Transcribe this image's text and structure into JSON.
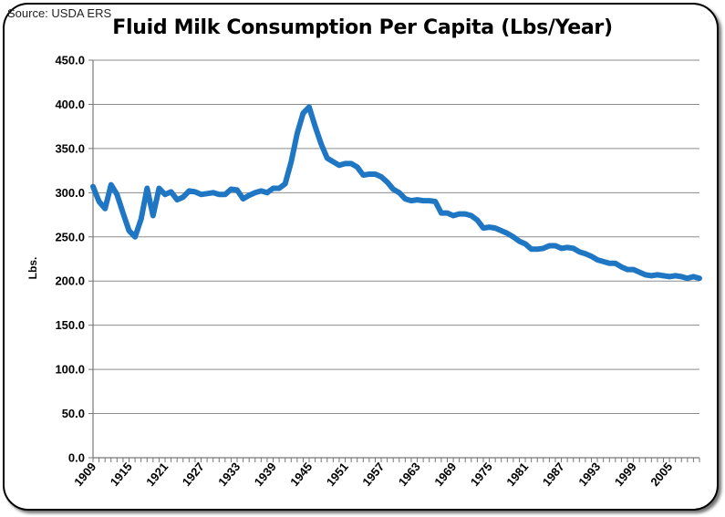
{
  "source": "Source:  USDA ERS",
  "chart_data": {
    "type": "line",
    "title": "Fluid Milk Consumption Per Capita (Lbs/Year)",
    "xlabel": "",
    "ylabel": "Lbs.",
    "ylim": [
      0,
      450
    ],
    "y_ticks": [
      "0.0",
      "50.0",
      "100.0",
      "150.0",
      "200.0",
      "250.0",
      "300.0",
      "350.0",
      "400.0",
      "450.0"
    ],
    "x_ticks": [
      "1909",
      "1915",
      "1921",
      "1927",
      "1933",
      "1939",
      "1945",
      "1951",
      "1957",
      "1963",
      "1969",
      "1975",
      "1981",
      "1987",
      "1993",
      "1999",
      "2005"
    ],
    "grid": "horizontal",
    "legend": "none",
    "line_color": "#1f77c4",
    "series": [
      {
        "x": [
          1909,
          1910,
          1911,
          1912,
          1913,
          1914,
          1915,
          1916,
          1917,
          1918,
          1919,
          1920,
          1921,
          1922,
          1923,
          1924,
          1925,
          1926,
          1927,
          1928,
          1929,
          1930,
          1931,
          1932,
          1933,
          1934,
          1935,
          1936,
          1937,
          1938,
          1939,
          1940,
          1941,
          1942,
          1943,
          1944,
          1945,
          1946,
          1947,
          1948,
          1949,
          1950,
          1951,
          1952,
          1953,
          1954,
          1955,
          1956,
          1957,
          1958,
          1959,
          1960,
          1961,
          1962,
          1963,
          1964,
          1965,
          1966,
          1967,
          1968,
          1969,
          1970,
          1971,
          1972,
          1973,
          1974,
          1975,
          1976,
          1977,
          1978,
          1979,
          1980,
          1981,
          1982,
          1983,
          1984,
          1985,
          1986,
          1987,
          1988,
          1989,
          1990,
          1991,
          1992,
          1993,
          1994,
          1995,
          1996,
          1997,
          1998,
          1999,
          2000,
          2001,
          2002,
          2003,
          2004,
          2005,
          2006,
          2007,
          2008,
          2009,
          2010
        ],
        "values": [
          307,
          290,
          282,
          309,
          298,
          277,
          257,
          250,
          270,
          305,
          274,
          305,
          298,
          301,
          292,
          295,
          302,
          301,
          298,
          299,
          300,
          298,
          298,
          304,
          303,
          293,
          297,
          300,
          302,
          300,
          305,
          305,
          310,
          335,
          367,
          390,
          397,
          375,
          355,
          339,
          335,
          331,
          333,
          333,
          329,
          320,
          321,
          321,
          318,
          312,
          304,
          300,
          293,
          291,
          292,
          291,
          291,
          290,
          277,
          277,
          274,
          276,
          276,
          274,
          269,
          260,
          261,
          260,
          257,
          254,
          250,
          245,
          242,
          236,
          236,
          237,
          240,
          240,
          237,
          238,
          237,
          233,
          231,
          228,
          224,
          222,
          220,
          220,
          216,
          213,
          213,
          210,
          207,
          206,
          207,
          206,
          205,
          206,
          205,
          203,
          205,
          203
        ]
      }
    ]
  }
}
